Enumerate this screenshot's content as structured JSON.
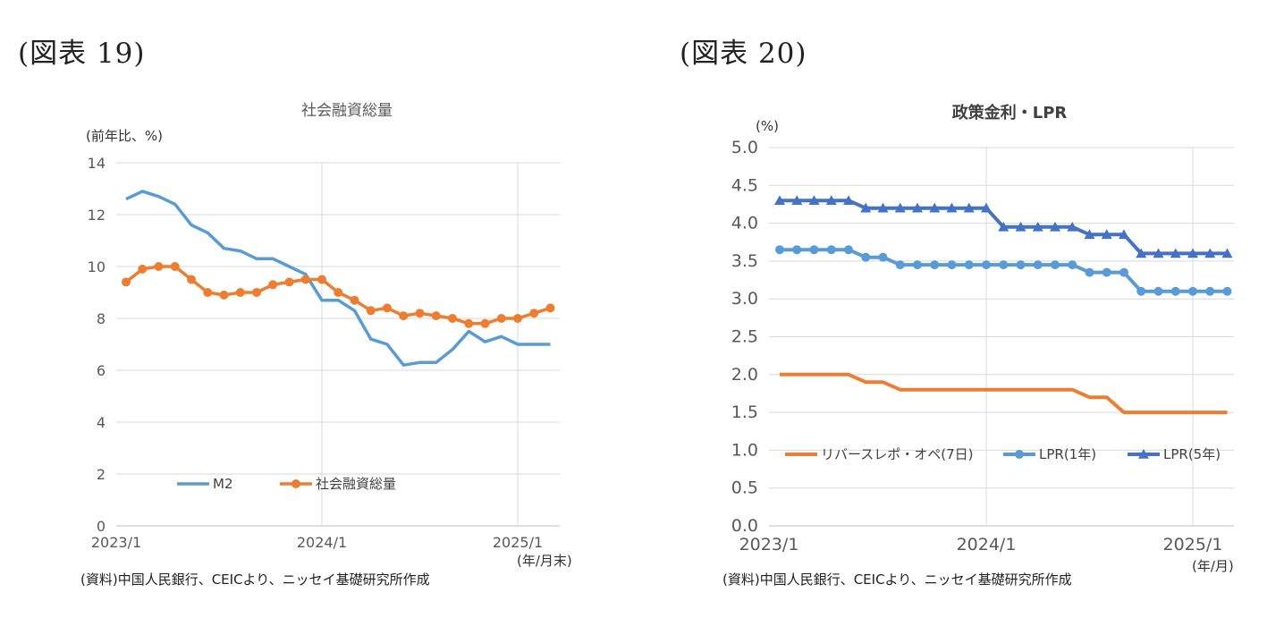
{
  "figures": {
    "left_label": "(図表 19)",
    "right_label": "(図表 20)"
  },
  "colors": {
    "blue": "#5b9bd5",
    "orange": "#ed7d31",
    "darkblue": "#4472c4",
    "grid": "#d9d9d9"
  },
  "chart_data": [
    {
      "type": "line",
      "title": "社会融資総量",
      "ylabel": "(前年比、%)",
      "xlabel": "(年/月末)",
      "ylim": [
        0,
        14
      ],
      "yticks": [
        "0",
        "2",
        "4",
        "6",
        "8",
        "10",
        "12",
        "14"
      ],
      "xticks": [
        "2023/1",
        "2024/1",
        "2025/1"
      ],
      "x_start": "2023/1",
      "legend_position": "bottom-left",
      "series": [
        {
          "name": "M2",
          "marker": "none",
          "values": [
            12.6,
            12.9,
            12.7,
            12.4,
            11.6,
            11.3,
            10.7,
            10.6,
            10.3,
            10.3,
            10.0,
            9.7,
            8.7,
            8.7,
            8.3,
            7.2,
            7.0,
            6.2,
            6.3,
            6.3,
            6.8,
            7.5,
            7.1,
            7.3,
            7.0,
            7.0,
            7.0
          ]
        },
        {
          "name": "社会融資総量",
          "marker": "circle",
          "values": [
            9.4,
            9.9,
            10.0,
            10.0,
            9.5,
            9.0,
            8.9,
            9.0,
            9.0,
            9.3,
            9.4,
            9.5,
            9.5,
            9.0,
            8.7,
            8.3,
            8.4,
            8.1,
            8.2,
            8.1,
            8.0,
            7.8,
            7.8,
            8.0,
            8.0,
            8.2,
            8.4
          ]
        }
      ],
      "source": "(資料)中国人民銀行、CEICより、ニッセイ基礎研究所作成"
    },
    {
      "type": "line",
      "title": "政策金利・LPR",
      "ylabel": "(%)",
      "xlabel": "(年/月)",
      "ylim": [
        0,
        5
      ],
      "yticks": [
        "0.0",
        "0.5",
        "1.0",
        "1.5",
        "2.0",
        "2.5",
        "3.0",
        "3.5",
        "4.0",
        "4.5",
        "5.0"
      ],
      "xticks": [
        "2023/1",
        "2024/1",
        "2025/1"
      ],
      "x_start": "2023/1",
      "legend_position": "bottom",
      "series": [
        {
          "name": "リバースレポ・オペ(7日)",
          "marker": "none",
          "values": [
            2.0,
            2.0,
            2.0,
            2.0,
            2.0,
            1.9,
            1.9,
            1.8,
            1.8,
            1.8,
            1.8,
            1.8,
            1.8,
            1.8,
            1.8,
            1.8,
            1.8,
            1.8,
            1.7,
            1.7,
            1.5,
            1.5,
            1.5,
            1.5,
            1.5,
            1.5,
            1.5
          ]
        },
        {
          "name": "LPR(1年)",
          "marker": "circle",
          "values": [
            3.65,
            3.65,
            3.65,
            3.65,
            3.65,
            3.55,
            3.55,
            3.45,
            3.45,
            3.45,
            3.45,
            3.45,
            3.45,
            3.45,
            3.45,
            3.45,
            3.45,
            3.45,
            3.35,
            3.35,
            3.35,
            3.1,
            3.1,
            3.1,
            3.1,
            3.1,
            3.1
          ]
        },
        {
          "name": "LPR(5年)",
          "marker": "triangle",
          "values": [
            4.3,
            4.3,
            4.3,
            4.3,
            4.3,
            4.2,
            4.2,
            4.2,
            4.2,
            4.2,
            4.2,
            4.2,
            4.2,
            3.95,
            3.95,
            3.95,
            3.95,
            3.95,
            3.85,
            3.85,
            3.85,
            3.6,
            3.6,
            3.6,
            3.6,
            3.6,
            3.6
          ]
        }
      ],
      "source": "(資料)中国人民銀行、CEICより、ニッセイ基礎研究所作成"
    }
  ]
}
